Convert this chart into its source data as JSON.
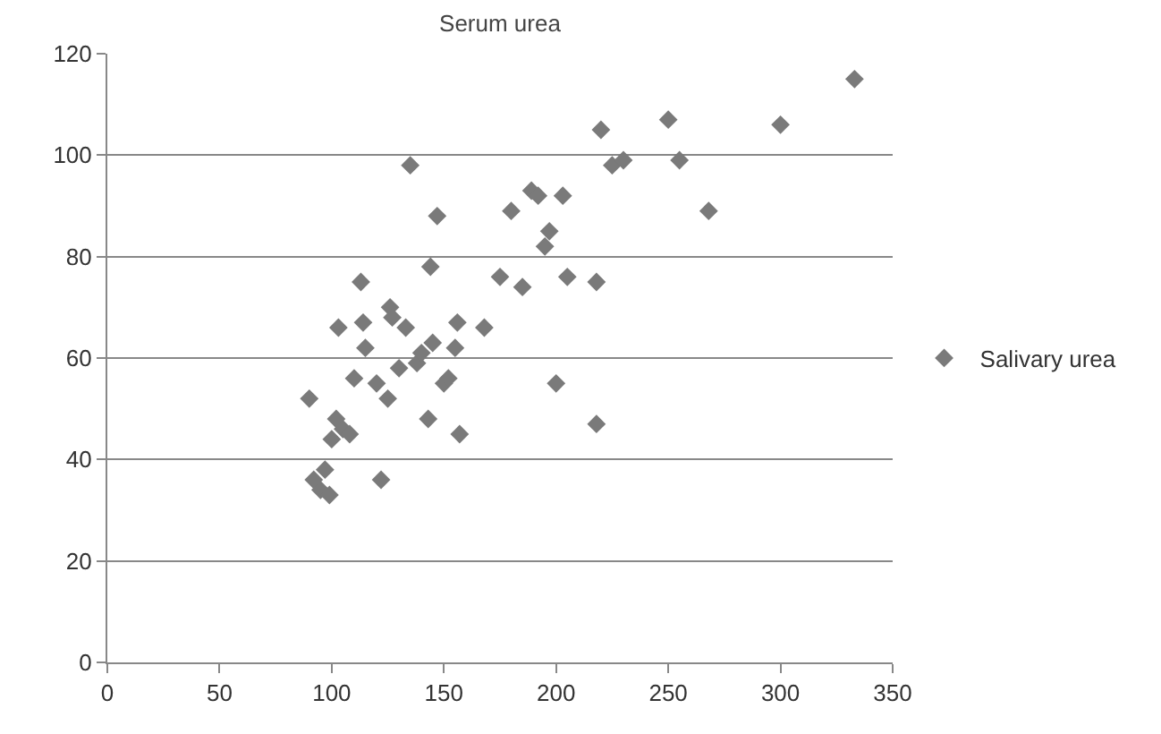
{
  "chart_data": {
    "type": "scatter",
    "title": "Serum urea",
    "x": [
      90,
      92,
      95,
      97,
      99,
      100,
      102,
      103,
      105,
      108,
      110,
      113,
      114,
      115,
      120,
      122,
      125,
      126,
      127,
      130,
      133,
      135,
      138,
      140,
      143,
      144,
      145,
      147,
      150,
      152,
      155,
      156,
      157,
      168,
      175,
      180,
      185,
      189,
      192,
      195,
      197,
      200,
      203,
      205,
      218,
      218,
      220,
      225,
      230,
      250,
      255,
      268,
      300,
      333
    ],
    "series": [
      {
        "name": "Salivary urea",
        "color": "#7a7a7a",
        "values": [
          52,
          36,
          34,
          38,
          33,
          44,
          48,
          66,
          46,
          45,
          56,
          75,
          67,
          62,
          55,
          36,
          52,
          70,
          68,
          58,
          66,
          98,
          59,
          61,
          48,
          78,
          63,
          88,
          55,
          56,
          62,
          67,
          45,
          66,
          76,
          89,
          74,
          93,
          92,
          82,
          85,
          55,
          92,
          76,
          75,
          47,
          105,
          98,
          99,
          107,
          99,
          89,
          106,
          115
        ]
      }
    ],
    "xlim": [
      0,
      350
    ],
    "xticks": [
      0,
      50,
      100,
      150,
      200,
      250,
      300,
      350
    ],
    "ylim": [
      0,
      120
    ],
    "yticks": [
      0,
      20,
      40,
      60,
      80,
      100,
      120
    ],
    "grid": "y",
    "legend": "right",
    "marker": "diamond"
  }
}
